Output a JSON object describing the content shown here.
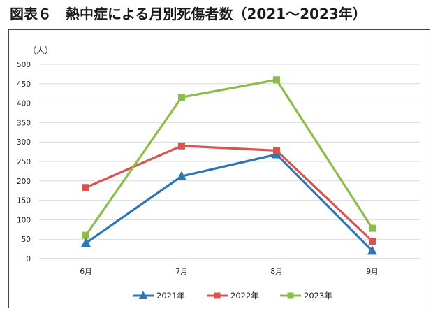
{
  "title": "図表６　熱中症による月別死傷者数（2021～2023年）",
  "chart_data": {
    "type": "line",
    "title": "図表６　熱中症による月別死傷者数（2021～2023年）",
    "ylabel": "（人）",
    "xlabel": "",
    "categories": [
      "6月",
      "7月",
      "8月",
      "9月"
    ],
    "ylim": [
      0,
      500
    ],
    "yticks": [
      0,
      50,
      100,
      150,
      200,
      250,
      300,
      350,
      400,
      450,
      500
    ],
    "grid": true,
    "legend_position": "bottom",
    "series": [
      {
        "name": "2021年",
        "values": [
          40,
          212,
          268,
          20
        ],
        "color": "#2e75b6",
        "marker": "triangle"
      },
      {
        "name": "2022年",
        "values": [
          183,
          290,
          278,
          45
        ],
        "color": "#d9534f",
        "marker": "square"
      },
      {
        "name": "2023年",
        "values": [
          60,
          415,
          460,
          78
        ],
        "color": "#8cbd4a",
        "marker": "square"
      }
    ]
  }
}
